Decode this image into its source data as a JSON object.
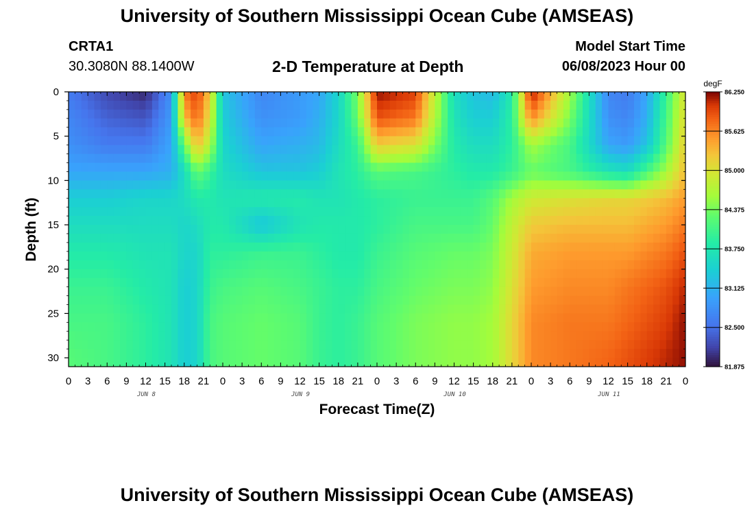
{
  "header": {
    "title": "University of Southern Mississippi Ocean Cube (AMSEAS)",
    "station": "CRTA1",
    "coords": "30.3080N  88.1400W",
    "chart_title": "2-D Temperature at Depth",
    "model_start_label": "Model Start Time",
    "model_start_value": "06/08/2023 Hour 00"
  },
  "footer": {
    "title": "University of Southern Mississippi Ocean Cube (AMSEAS)"
  },
  "chart_data": {
    "type": "heatmap",
    "title": "2-D Temperature at Depth",
    "xlabel": "Forecast Time(Z)",
    "ylabel": "Depth (ft)",
    "x_hours": [
      0,
      6,
      12,
      16,
      18,
      20,
      22,
      24,
      30,
      36,
      39,
      42,
      45,
      48,
      54,
      60,
      63,
      66,
      69,
      72,
      78,
      84,
      87,
      90,
      93,
      96
    ],
    "x_tick_labels": [
      "0",
      "3",
      "6",
      "9",
      "12",
      "15",
      "18",
      "21",
      "0",
      "3",
      "6",
      "9",
      "12",
      "15",
      "18",
      "21",
      "0",
      "3",
      "6",
      "9",
      "12",
      "15",
      "18",
      "21",
      "0",
      "3",
      "6",
      "9",
      "12",
      "15",
      "18",
      "21",
      "0"
    ],
    "day_labels": [
      "JUN 8",
      "JUN 9",
      "JUN 10",
      "JUN 11"
    ],
    "y_ticks": [
      0,
      5,
      10,
      15,
      20,
      25,
      30
    ],
    "ylim": [
      0,
      31
    ],
    "depths_ft": [
      0,
      3,
      6,
      9,
      12,
      15,
      18,
      22,
      26,
      30
    ],
    "temperature_degF": [
      [
        82.6,
        82.2,
        82.0,
        82.8,
        85.7,
        86.0,
        85.2,
        83.3,
        82.7,
        82.9,
        83.0,
        83.5,
        84.4,
        86.2,
        86.0,
        83.6,
        83.3,
        83.2,
        83.8,
        86.2,
        84.6,
        82.7,
        82.6,
        83.0,
        84.0,
        85.0
      ],
      [
        82.7,
        82.4,
        82.3,
        82.9,
        85.3,
        85.8,
        85.0,
        83.4,
        82.8,
        82.9,
        83.1,
        83.5,
        84.3,
        85.9,
        85.7,
        83.7,
        83.4,
        83.4,
        83.9,
        85.6,
        84.4,
        82.8,
        82.7,
        83.1,
        84.1,
        85.1
      ],
      [
        82.8,
        82.6,
        82.6,
        83.0,
        84.3,
        85.3,
        84.7,
        83.5,
        83.0,
        83.1,
        83.2,
        83.6,
        84.0,
        85.2,
        85.0,
        83.8,
        83.6,
        83.6,
        83.9,
        84.6,
        84.1,
        83.0,
        82.9,
        83.3,
        84.2,
        85.2
      ],
      [
        83.0,
        83.0,
        83.0,
        83.1,
        83.6,
        84.3,
        84.0,
        83.6,
        83.3,
        83.3,
        83.4,
        83.7,
        83.9,
        84.2,
        84.1,
        83.9,
        83.8,
        83.8,
        84.0,
        84.3,
        84.1,
        83.7,
        83.6,
        84.1,
        84.6,
        85.3
      ],
      [
        83.4,
        83.4,
        83.5,
        83.5,
        83.6,
        83.8,
        83.8,
        83.7,
        83.8,
        83.8,
        83.7,
        83.7,
        83.8,
        83.9,
        84.0,
        84.0,
        84.0,
        84.2,
        84.6,
        84.9,
        85.0,
        85.1,
        85.1,
        85.2,
        85.3,
        85.5
      ],
      [
        83.6,
        83.6,
        83.6,
        83.6,
        83.5,
        83.6,
        83.8,
        83.8,
        83.3,
        83.7,
        83.8,
        83.8,
        83.8,
        83.9,
        84.1,
        84.1,
        84.1,
        84.3,
        84.8,
        85.2,
        85.3,
        85.3,
        85.3,
        85.4,
        85.5,
        85.7
      ],
      [
        83.8,
        83.8,
        83.7,
        83.7,
        83.5,
        83.5,
        83.9,
        83.9,
        84.0,
        84.0,
        83.9,
        83.8,
        83.8,
        84.0,
        84.2,
        84.3,
        84.3,
        84.4,
        84.9,
        85.4,
        85.5,
        85.5,
        85.5,
        85.6,
        85.7,
        85.9
      ],
      [
        84.0,
        84.0,
        83.8,
        83.7,
        83.4,
        83.5,
        84.0,
        84.1,
        84.2,
        84.1,
        84.0,
        83.9,
        83.9,
        84.1,
        84.3,
        84.4,
        84.4,
        84.5,
        85.0,
        85.5,
        85.6,
        85.6,
        85.7,
        85.8,
        85.9,
        86.1
      ],
      [
        84.1,
        84.1,
        83.9,
        83.7,
        83.4,
        83.5,
        84.1,
        84.2,
        84.3,
        84.2,
        84.0,
        83.9,
        84.0,
        84.2,
        84.4,
        84.5,
        84.5,
        84.6,
        85.1,
        85.6,
        85.7,
        85.7,
        85.8,
        85.9,
        86.0,
        86.2
      ],
      [
        84.2,
        84.1,
        83.9,
        83.7,
        83.4,
        83.5,
        84.1,
        84.2,
        84.3,
        84.2,
        84.0,
        83.9,
        84.0,
        84.2,
        84.4,
        84.5,
        84.5,
        84.6,
        85.1,
        85.6,
        85.7,
        85.8,
        85.9,
        86.0,
        86.1,
        86.2
      ]
    ],
    "colorbar": {
      "unit": "degF",
      "min": 81.875,
      "max": 86.25,
      "labels": [
        "86.250",
        "85.625",
        "85.000",
        "84.375",
        "83.750",
        "83.125",
        "82.500",
        "81.875"
      ]
    },
    "grid": false,
    "legend": "colorbar-right"
  }
}
